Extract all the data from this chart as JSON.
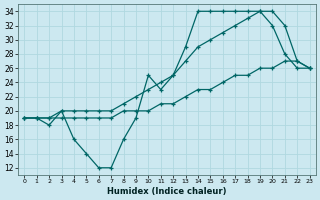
{
  "xlabel": "Humidex (Indice chaleur)",
  "bg_color": "#cce8f0",
  "line_color": "#006666",
  "xlim": [
    -0.5,
    23.5
  ],
  "ylim": [
    11,
    35
  ],
  "yticks": [
    12,
    14,
    16,
    18,
    20,
    22,
    24,
    26,
    28,
    30,
    32,
    34
  ],
  "xticks": [
    0,
    1,
    2,
    3,
    4,
    5,
    6,
    7,
    8,
    9,
    10,
    11,
    12,
    13,
    14,
    15,
    16,
    17,
    18,
    19,
    20,
    21,
    22,
    23
  ],
  "line_wavy_x": [
    0,
    1,
    2,
    3,
    4,
    5,
    6,
    7,
    8,
    9,
    10,
    11,
    12,
    13,
    14,
    15,
    16,
    17,
    18,
    19,
    20,
    21,
    22,
    23
  ],
  "line_wavy_y": [
    19,
    19,
    18,
    20,
    16,
    14,
    12,
    12,
    16,
    19,
    25,
    23,
    25,
    29,
    34,
    34,
    34,
    34,
    34,
    34,
    32,
    28,
    26,
    26
  ],
  "line_diag_x": [
    0,
    1,
    2,
    3,
    4,
    5,
    6,
    7,
    8,
    9,
    10,
    11,
    12,
    13,
    14,
    15,
    16,
    17,
    18,
    19,
    20,
    21,
    22,
    23
  ],
  "line_diag_y": [
    19,
    19,
    19,
    19,
    19,
    19,
    19,
    19,
    20,
    20,
    20,
    21,
    21,
    22,
    23,
    23,
    24,
    25,
    25,
    26,
    26,
    27,
    27,
    26
  ],
  "line_peak_x": [
    0,
    1,
    2,
    3,
    4,
    5,
    6,
    7,
    8,
    9,
    10,
    11,
    12,
    13,
    14,
    15,
    16,
    17,
    18,
    19,
    20,
    21,
    22,
    23
  ],
  "line_peak_y": [
    19,
    19,
    19,
    20,
    20,
    20,
    20,
    20,
    21,
    22,
    23,
    24,
    25,
    27,
    29,
    30,
    31,
    32,
    33,
    34,
    34,
    32,
    27,
    26
  ]
}
